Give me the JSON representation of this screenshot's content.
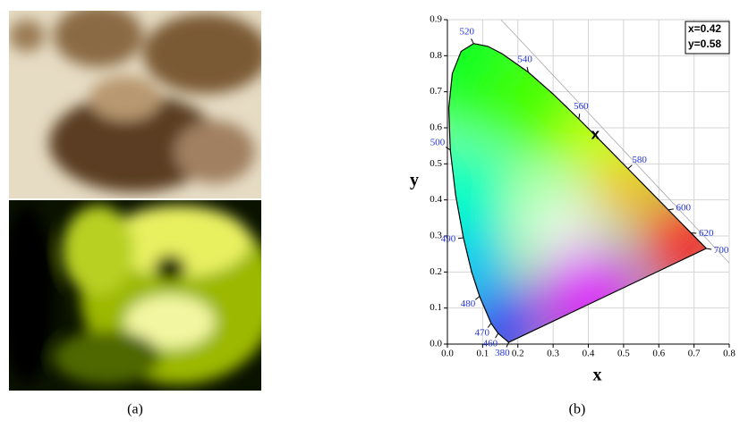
{
  "panels": [
    {
      "label": "(a)"
    },
    {
      "label": "(b)"
    }
  ],
  "chart_data": {
    "type": "cie",
    "xlabel": "x",
    "ylabel": "y",
    "xlim": [
      0,
      0.8
    ],
    "ylim": [
      0,
      0.9
    ],
    "xticks": [
      {
        "value": 0,
        "label": "0.0"
      },
      0.1,
      0.2,
      0.3,
      0.4,
      0.5,
      0.6,
      0.7,
      0.8
    ],
    "yticks": [
      {
        "value": 0,
        "label": "0.0"
      },
      0.1,
      0.2,
      0.3,
      0.4,
      0.5,
      0.6,
      0.7,
      0.8,
      0.9
    ],
    "grid": true,
    "locus": {
      "labels": [
        "380",
        "460",
        "470",
        "480",
        null,
        "490",
        null,
        "500",
        null,
        null,
        null,
        "520",
        null,
        null,
        "540",
        null,
        "560",
        null,
        "580",
        null,
        "600",
        "620",
        "700"
      ],
      "x": [
        0.1741,
        0.144,
        0.1241,
        0.0913,
        0.0687,
        0.0454,
        0.0235,
        0.0082,
        0.0039,
        0.0139,
        0.0389,
        0.0743,
        0.1142,
        0.1547,
        0.2296,
        0.3016,
        0.3731,
        0.4441,
        0.5125,
        0.5752,
        0.627,
        0.6915,
        0.7347
      ],
      "y": [
        0.005,
        0.0297,
        0.0578,
        0.1327,
        0.2007,
        0.295,
        0.4127,
        0.5384,
        0.6548,
        0.7502,
        0.812,
        0.8338,
        0.8262,
        0.8059,
        0.7543,
        0.6923,
        0.6245,
        0.5547,
        0.4866,
        0.4242,
        0.3725,
        0.3083,
        0.2653
      ]
    },
    "point": {
      "label": "x",
      "x": 0.42,
      "y": 0.58
    },
    "annotation": [
      "x=0.42",
      "y=0.58"
    ]
  }
}
